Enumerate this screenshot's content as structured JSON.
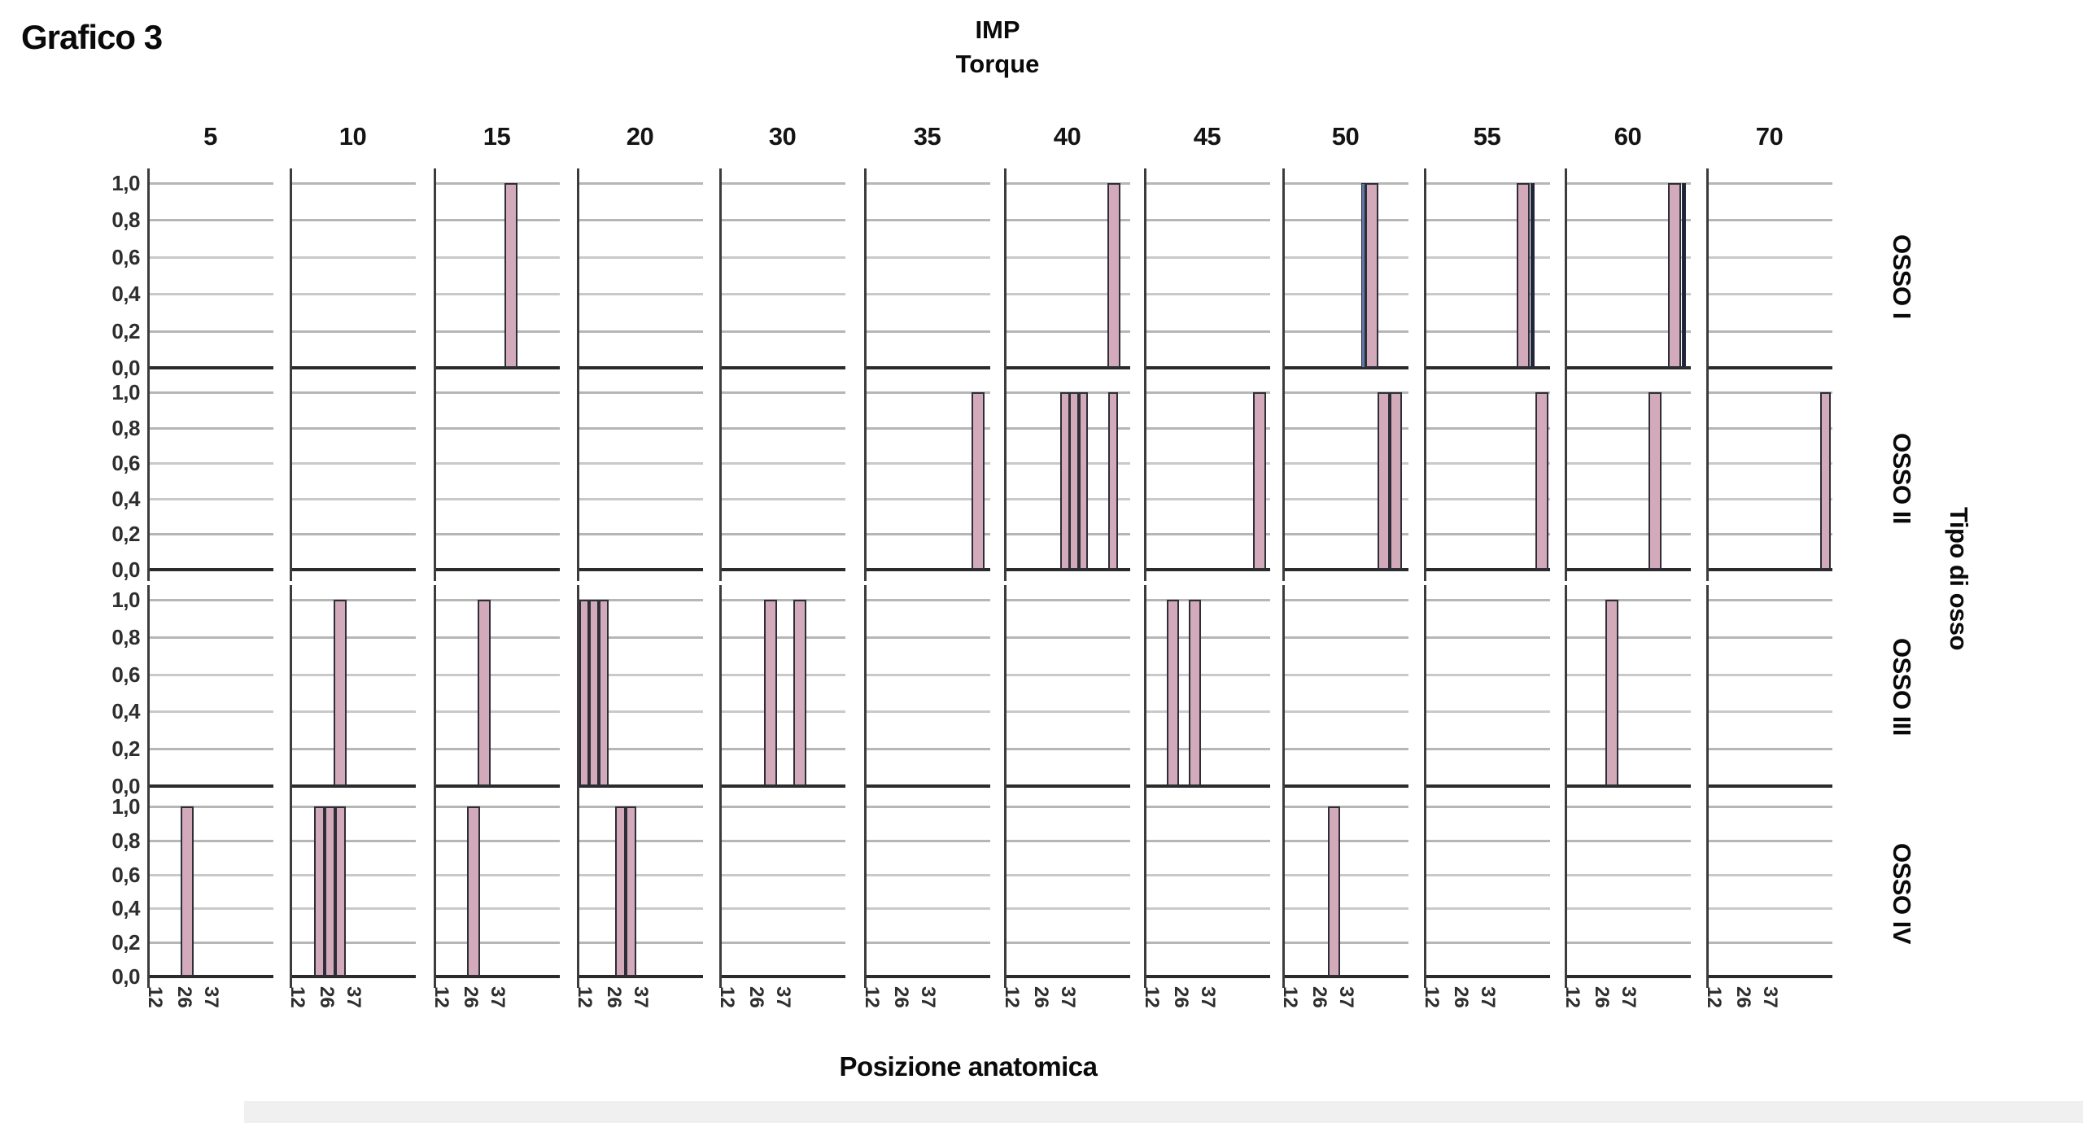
{
  "title": "Grafico 3",
  "top_header": {
    "line1": "IMP",
    "line2": "Torque"
  },
  "bottom_label": "Posizione anatomica",
  "right_header": "Tipo di osso",
  "chart_data": {
    "type": "bar",
    "trellis": true,
    "title": "Grafico 3",
    "top_axis_title": [
      "IMP",
      "Torque"
    ],
    "xlabel": "Posizione anatomica",
    "right_axis_title": "Tipo di osso",
    "columns": [
      "5",
      "10",
      "15",
      "20",
      "30",
      "35",
      "40",
      "45",
      "50",
      "55",
      "60",
      "70"
    ],
    "rows": [
      "OSSO I",
      "OSSO II",
      "OSSO III",
      "OSSO IV"
    ],
    "y_ticks": [
      "1,0",
      "0,8",
      "0,6",
      "0,4",
      "0,2",
      "0,0"
    ],
    "ylim": [
      0,
      1
    ],
    "grid": true,
    "x_ticks": {
      "labels": [
        "12",
        "26",
        "37"
      ],
      "fractions": [
        0.05,
        0.287,
        0.497
      ]
    },
    "colors": {
      "bar_fill": "#d2aaba",
      "bar_border": "#2e2e38",
      "bar_blue": "#5f78a8",
      "bar_navy": "#1d2440",
      "gridline": "#b6b6b6",
      "axis": "#3c3c3c",
      "baseline": "#2b2b2b"
    },
    "bar_default_width_frac": 0.103,
    "cells": [
      {
        "row": "OSSO I",
        "col": "15",
        "bars": [
          {
            "pos": 0.616,
            "height": 1.0
          }
        ]
      },
      {
        "row": "OSSO I",
        "col": "40",
        "bars": [
          {
            "pos": 0.871,
            "height": 1.0
          }
        ]
      },
      {
        "row": "OSSO I",
        "col": "50",
        "bars": [
          {
            "pos": 0.642,
            "height": 1.0,
            "color": "blue",
            "w": 0.035
          },
          {
            "pos": 0.712,
            "height": 1.0
          }
        ]
      },
      {
        "row": "OSSO I",
        "col": "55",
        "bars": [
          {
            "pos": 0.79,
            "height": 1.0
          },
          {
            "pos": 0.861,
            "height": 1.0,
            "color": "navy",
            "w": 0.035
          }
        ]
      },
      {
        "row": "OSSO I",
        "col": "60",
        "bars": [
          {
            "pos": 0.874,
            "height": 1.0
          },
          {
            "pos": 0.945,
            "height": 1.0,
            "color": "navy",
            "w": 0.035
          }
        ]
      },
      {
        "row": "OSSO II",
        "col": "35",
        "bars": [
          {
            "pos": 0.903,
            "height": 1.0
          }
        ]
      },
      {
        "row": "OSSO II",
        "col": "40",
        "bars": [
          {
            "pos": 0.481,
            "height": 1.0,
            "w": 0.077
          },
          {
            "pos": 0.555,
            "height": 1.0,
            "w": 0.077
          },
          {
            "pos": 0.629,
            "height": 1.0,
            "w": 0.077
          },
          {
            "pos": 0.865,
            "height": 1.0,
            "w": 0.077
          }
        ]
      },
      {
        "row": "OSSO II",
        "col": "45",
        "bars": [
          {
            "pos": 0.916,
            "height": 1.0
          }
        ]
      },
      {
        "row": "OSSO II",
        "col": "50",
        "bars": [
          {
            "pos": 0.803,
            "height": 1.0,
            "w": 0.097
          },
          {
            "pos": 0.9,
            "height": 1.0,
            "w": 0.097
          }
        ]
      },
      {
        "row": "OSSO II",
        "col": "55",
        "bars": [
          {
            "pos": 0.935,
            "height": 1.0
          }
        ]
      },
      {
        "row": "OSSO II",
        "col": "60",
        "bars": [
          {
            "pos": 0.716,
            "height": 1.0
          }
        ]
      },
      {
        "row": "OSSO II",
        "col": "70",
        "bars": [
          {
            "pos": 0.945,
            "height": 1.0,
            "w": 0.084
          }
        ]
      },
      {
        "row": "OSSO III",
        "col": "10",
        "bars": [
          {
            "pos": 0.4,
            "height": 1.0
          }
        ]
      },
      {
        "row": "OSSO III",
        "col": "15",
        "bars": [
          {
            "pos": 0.397,
            "height": 1.0
          }
        ]
      },
      {
        "row": "OSSO III",
        "col": "20",
        "bars": [
          {
            "pos": 0.058,
            "height": 1.0,
            "w": 0.077
          },
          {
            "pos": 0.135,
            "height": 1.0,
            "w": 0.077
          },
          {
            "pos": 0.213,
            "height": 1.0,
            "w": 0.077
          }
        ]
      },
      {
        "row": "OSSO III",
        "col": "30",
        "bars": [
          {
            "pos": 0.406,
            "height": 1.0
          },
          {
            "pos": 0.639,
            "height": 1.0
          }
        ]
      },
      {
        "row": "OSSO III",
        "col": "45",
        "bars": [
          {
            "pos": 0.229,
            "height": 1.0,
            "w": 0.097
          },
          {
            "pos": 0.403,
            "height": 1.0,
            "w": 0.097
          }
        ]
      },
      {
        "row": "OSSO III",
        "col": "60",
        "bars": [
          {
            "pos": 0.377,
            "height": 1.0
          }
        ]
      },
      {
        "row": "OSSO IV",
        "col": "5",
        "bars": [
          {
            "pos": 0.316,
            "height": 1.0
          }
        ]
      },
      {
        "row": "OSSO IV",
        "col": "10",
        "bars": [
          {
            "pos": 0.235,
            "height": 1.0,
            "w": 0.084
          },
          {
            "pos": 0.319,
            "height": 1.0,
            "w": 0.084
          },
          {
            "pos": 0.403,
            "height": 1.0,
            "w": 0.084
          }
        ]
      },
      {
        "row": "OSSO IV",
        "col": "15",
        "bars": [
          {
            "pos": 0.319,
            "height": 1.0
          }
        ]
      },
      {
        "row": "OSSO IV",
        "col": "20",
        "bars": [
          {
            "pos": 0.345,
            "height": 1.0,
            "w": 0.084
          },
          {
            "pos": 0.432,
            "height": 1.0,
            "w": 0.084
          }
        ]
      },
      {
        "row": "OSSO IV",
        "col": "50",
        "bars": [
          {
            "pos": 0.41,
            "height": 1.0,
            "w": 0.097
          }
        ]
      }
    ]
  }
}
